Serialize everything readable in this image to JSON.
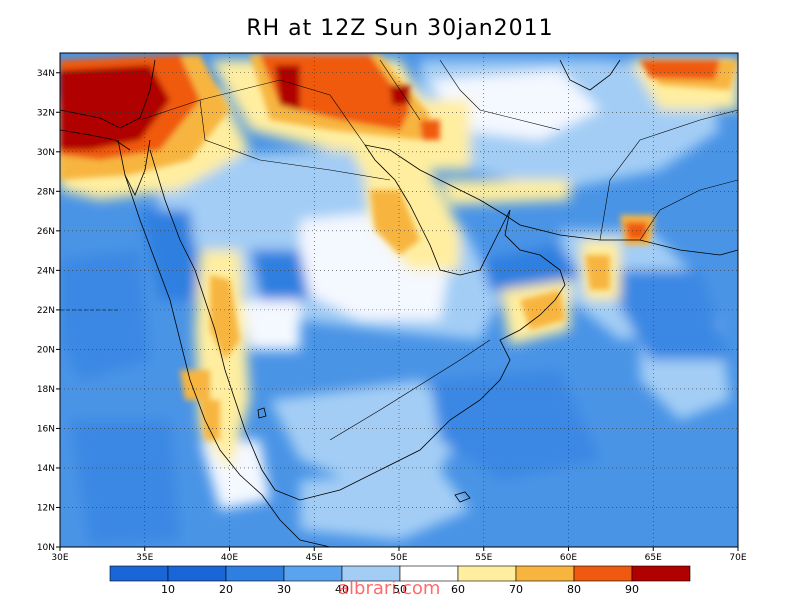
{
  "title": "RH at 12Z Sun 30jan2011",
  "watermark": "albrari.com",
  "map": {
    "lon_range": [
      30,
      70
    ],
    "lat_range": [
      10,
      35
    ],
    "lon_ticks": [
      "30E",
      "35E",
      "40E",
      "45E",
      "50E",
      "55E",
      "60E",
      "65E",
      "70E"
    ],
    "lat_ticks": [
      "10N",
      "12N",
      "14N",
      "16N",
      "18N",
      "20N",
      "22N",
      "24N",
      "26N",
      "28N",
      "30N",
      "32N",
      "34N"
    ],
    "grid": "dotted",
    "background_level_color": "#4a94e6"
  },
  "colorbar": {
    "labels": [
      "10",
      "20",
      "30",
      "40",
      "50",
      "60",
      "70",
      "80",
      "90"
    ],
    "colors": [
      "#1a66d9",
      "#2f7fe0",
      "#5aa3ee",
      "#a3cdf5",
      "#ffffff",
      "#ffeea0",
      "#f7b540",
      "#f05a10",
      "#b00000"
    ]
  }
}
